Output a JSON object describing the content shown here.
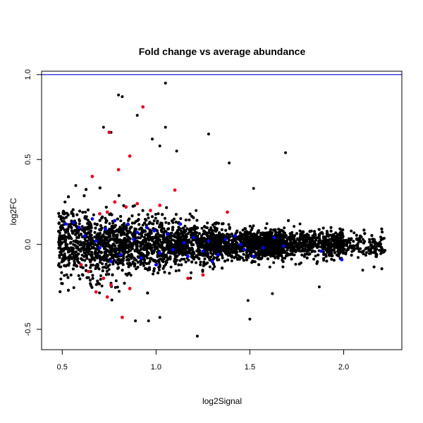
{
  "chart_data": {
    "type": "scatter",
    "title": "Fold change vs average abundance",
    "xlabel": "log2Signal",
    "ylabel": "log2FC",
    "xlim": [
      0.39,
      2.31
    ],
    "ylim": [
      -0.62,
      1.02
    ],
    "x_ticks": [
      "0.5",
      "1.0",
      "1.5",
      "2.0"
    ],
    "y_ticks": [
      "-0.5",
      "0.0",
      "0.5",
      "1.0"
    ],
    "grid": false,
    "legend": "none",
    "reference_line": {
      "y": 1.0,
      "color": "#0000cc"
    },
    "colors": {
      "background_points": "#000000",
      "blue_points": "#0000ff",
      "red_points": "#ee0022"
    },
    "series": [
      {
        "color": "#000000",
        "note_points": "dense cloud of ~15000 points centered near log2FC 0, spanning log2Signal 0.48-2.22",
        "outliers": [
          [
            0.8,
            0.88
          ],
          [
            0.82,
            0.87
          ],
          [
            1.05,
            0.95
          ],
          [
            0.93,
            0.81
          ],
          [
            0.9,
            0.76
          ],
          [
            0.72,
            0.69
          ],
          [
            1.05,
            0.69
          ],
          [
            1.28,
            0.65
          ],
          [
            1.69,
            0.54
          ],
          [
            0.98,
            0.62
          ],
          [
            1.02,
            0.58
          ],
          [
            0.76,
            0.66
          ],
          [
            1.39,
            0.48
          ],
          [
            1.11,
            0.55
          ],
          [
            1.52,
            0.33
          ],
          [
            1.22,
            -0.54
          ],
          [
            1.5,
            -0.44
          ],
          [
            1.49,
            -0.33
          ],
          [
            0.96,
            -0.45
          ],
          [
            1.02,
            -0.43
          ],
          [
            0.89,
            -0.45
          ],
          [
            1.62,
            -0.29
          ],
          [
            1.87,
            -0.25
          ]
        ]
      },
      {
        "color": "#0000ff",
        "points": [
          [
            0.52,
            0.12
          ],
          [
            0.56,
            0.13
          ],
          [
            0.59,
            0.1
          ],
          [
            0.62,
            0.05
          ],
          [
            0.66,
            0.15
          ],
          [
            0.7,
            -0.02
          ],
          [
            0.73,
            0.09
          ],
          [
            0.78,
            0.14
          ],
          [
            0.81,
            -0.06
          ],
          [
            0.85,
            0.12
          ],
          [
            0.88,
            0.03
          ],
          [
            0.92,
            -0.08
          ],
          [
            0.95,
            0.1
          ],
          [
            0.99,
            0.08
          ],
          [
            1.02,
            -0.05
          ],
          [
            1.06,
            0.06
          ],
          [
            1.09,
            -0.03
          ],
          [
            1.13,
            0.12
          ],
          [
            1.17,
            -0.07
          ],
          [
            1.2,
            0.04
          ],
          [
            1.25,
            -0.04
          ],
          [
            1.28,
            0.02
          ],
          [
            1.33,
            -0.06
          ],
          [
            1.37,
            0.03
          ],
          [
            1.42,
            0.05
          ],
          [
            1.47,
            -0.03
          ],
          [
            1.52,
            -0.07
          ],
          [
            1.57,
            -0.02
          ],
          [
            1.63,
            0.04
          ],
          [
            1.68,
            -0.01
          ],
          [
            1.88,
            -0.04
          ],
          [
            1.99,
            -0.09
          ],
          [
            0.6,
            -0.12
          ],
          [
            0.76,
            -0.1
          ],
          [
            0.9,
            0.07
          ],
          [
            1.0,
            -0.12
          ],
          [
            1.15,
            0.01
          ],
          [
            1.3,
            -0.1
          ],
          [
            1.45,
            0.0
          ],
          [
            0.68,
            0.02
          ]
        ]
      },
      {
        "color": "#ee0022",
        "points": [
          [
            0.93,
            0.81
          ],
          [
            0.75,
            0.66
          ],
          [
            0.86,
            0.52
          ],
          [
            0.8,
            0.44
          ],
          [
            0.66,
            0.4
          ],
          [
            1.1,
            0.32
          ],
          [
            0.84,
            0.22
          ],
          [
            0.7,
            0.18
          ],
          [
            0.78,
            0.25
          ],
          [
            0.74,
            0.19
          ],
          [
            0.97,
            0.2
          ],
          [
            1.02,
            0.23
          ],
          [
            1.38,
            0.19
          ],
          [
            0.64,
            -0.16
          ],
          [
            0.76,
            -0.24
          ],
          [
            0.74,
            -0.31
          ],
          [
            0.82,
            -0.43
          ],
          [
            0.86,
            -0.26
          ],
          [
            0.68,
            -0.28
          ],
          [
            1.17,
            -0.2
          ],
          [
            1.25,
            -0.18
          ],
          [
            0.6,
            -0.12
          ],
          [
            0.9,
            0.24
          ],
          [
            0.72,
            -0.2
          ]
        ]
      }
    ]
  }
}
